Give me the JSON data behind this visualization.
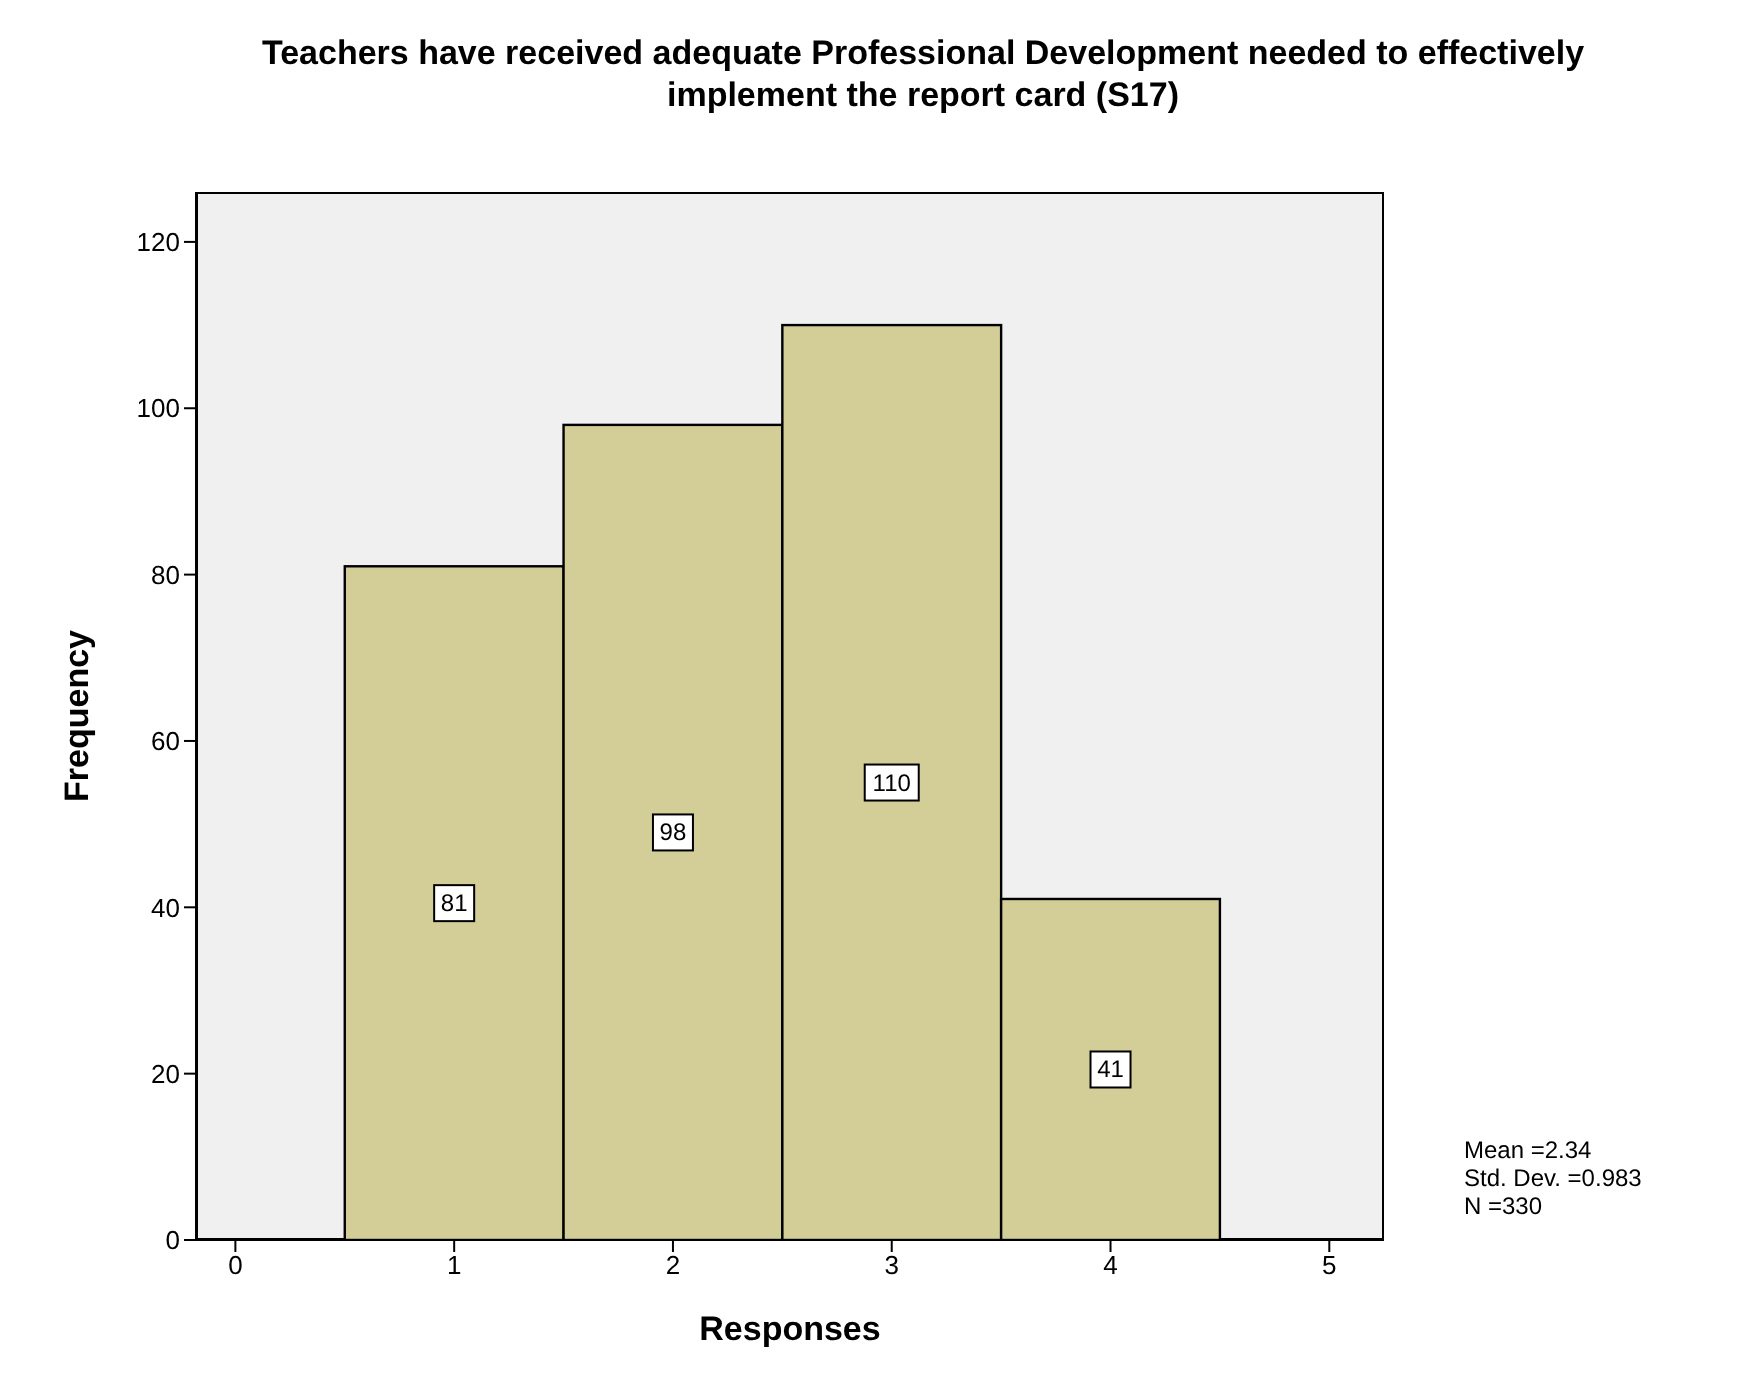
{
  "chart_data": {
    "type": "histogram",
    "title": "Teachers have received adequate Professional Development needed to effectively implement the report card (S17)",
    "xlabel": "Responses",
    "ylabel": "Frequency",
    "bins": [
      0.5,
      1.5,
      2.5,
      3.5,
      4.5
    ],
    "values": [
      81,
      98,
      110,
      41
    ],
    "color": "#d3ce97",
    "xlim": [
      -0.18,
      5.25
    ],
    "xticks": [
      0,
      1,
      2,
      3,
      4,
      5
    ],
    "ylim": [
      0,
      126
    ],
    "yticks": [
      0,
      20,
      40,
      60,
      80,
      100,
      120
    ],
    "data_labels": true,
    "annotations": [
      "Mean =2.34",
      "Std. Dev. =0.983",
      "N =330"
    ]
  }
}
